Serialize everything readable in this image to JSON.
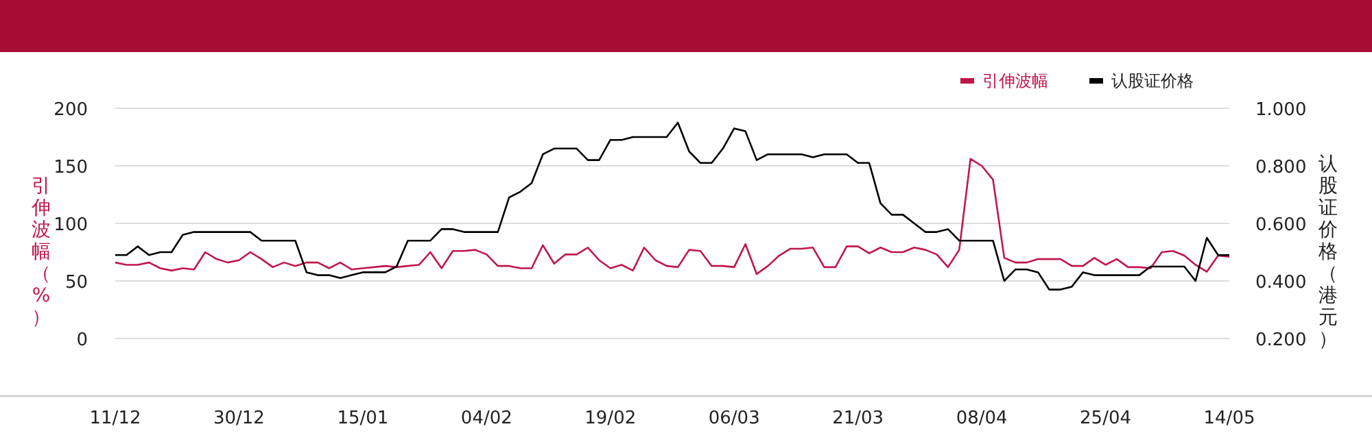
{
  "chart_data": {
    "type": "line",
    "ylabel": "引伸波幅（%）",
    "y2label": "认股证价格（港元）",
    "categories": [
      "11/12",
      null,
      null,
      null,
      null,
      null,
      null,
      null,
      null,
      null,
      null,
      "30/12",
      null,
      null,
      null,
      null,
      null,
      null,
      null,
      null,
      null,
      null,
      "15/01",
      null,
      null,
      null,
      null,
      null,
      null,
      null,
      null,
      null,
      null,
      "04/02",
      null,
      null,
      null,
      null,
      null,
      null,
      null,
      null,
      null,
      null,
      "19/02",
      null,
      null,
      null,
      null,
      null,
      null,
      null,
      null,
      null,
      null,
      "06/03",
      null,
      null,
      null,
      null,
      null,
      null,
      null,
      null,
      null,
      null,
      "21/03",
      null,
      null,
      null,
      null,
      null,
      null,
      null,
      null,
      null,
      null,
      "08/04",
      null,
      null,
      null,
      null,
      null,
      null,
      null,
      null,
      null,
      null,
      "25/04",
      null,
      null,
      null,
      null,
      null,
      null,
      null,
      null,
      null,
      null,
      "14/05"
    ],
    "series": [
      {
        "name": "引伸波幅",
        "color": "#c0174a",
        "values": [
          66,
          64,
          64,
          66,
          61,
          59,
          61,
          60,
          75,
          69,
          66,
          68,
          75,
          69,
          62,
          66,
          63,
          66,
          66,
          61,
          66,
          60,
          61,
          62,
          63,
          62,
          63,
          64,
          75,
          61,
          76,
          76,
          77,
          73,
          63,
          63,
          61,
          61,
          81,
          65,
          73,
          73,
          79,
          68,
          61,
          64,
          59,
          79,
          68,
          63,
          62,
          77,
          76,
          63,
          63,
          62,
          82,
          56,
          63,
          72,
          78,
          78,
          79,
          62,
          62,
          80,
          80,
          74,
          79,
          75,
          75,
          79,
          77,
          73,
          62,
          77,
          156,
          150,
          138,
          70,
          66,
          66,
          69,
          69,
          69,
          63,
          63,
          70,
          64,
          69,
          62,
          62,
          61,
          75,
          76,
          72,
          64,
          58,
          72,
          71
        ]
      },
      {
        "name": "认股证价格",
        "color": "#000000",
        "axis": "y2",
        "values": [
          0.49,
          0.49,
          0.52,
          0.49,
          0.5,
          0.5,
          0.56,
          0.57,
          0.57,
          0.57,
          0.57,
          0.57,
          0.57,
          0.54,
          0.54,
          0.54,
          0.54,
          0.43,
          0.42,
          0.42,
          0.41,
          0.42,
          0.43,
          0.43,
          0.43,
          0.45,
          0.54,
          0.54,
          0.54,
          0.58,
          0.58,
          0.57,
          0.57,
          0.57,
          0.57,
          0.69,
          0.71,
          0.74,
          0.84,
          0.86,
          0.86,
          0.86,
          0.82,
          0.82,
          0.89,
          0.89,
          0.9,
          0.9,
          0.9,
          0.9,
          0.95,
          0.85,
          0.81,
          0.81,
          0.86,
          0.93,
          0.92,
          0.82,
          0.84,
          0.84,
          0.84,
          0.84,
          0.83,
          0.84,
          0.84,
          0.84,
          0.81,
          0.81,
          0.67,
          0.63,
          0.63,
          0.6,
          0.57,
          0.57,
          0.58,
          0.54,
          0.54,
          0.54,
          0.54,
          0.4,
          0.44,
          0.44,
          0.43,
          0.37,
          0.37,
          0.38,
          0.43,
          0.42,
          0.42,
          0.42,
          0.42,
          0.42,
          0.45,
          0.45,
          0.45,
          0.45,
          0.4,
          0.55,
          0.49,
          0.49
        ]
      }
    ],
    "ylim": [
      -50,
      200
    ],
    "yticks": [
      0,
      50,
      100,
      150,
      200
    ],
    "y2lim": [
      0,
      1
    ],
    "y2ticks": [
      {
        "value": 0.2,
        "label": "0.200"
      },
      {
        "value": 0.4,
        "label": "0.400"
      },
      {
        "value": 0.6,
        "label": "0.600"
      },
      {
        "value": 0.8,
        "label": "0.800"
      },
      {
        "value": 1,
        "label": "1.000"
      }
    ],
    "grid": "y",
    "legend": "top right"
  }
}
